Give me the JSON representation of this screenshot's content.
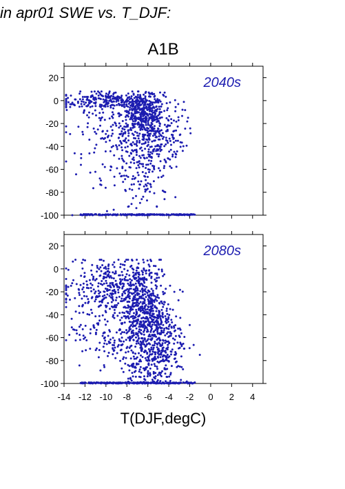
{
  "figure": {
    "title": "in apr01 SWE vs. T_DJF:",
    "scenario": "A1B",
    "xlabel": "T(DJF,degC)"
  },
  "colors": {
    "points": "#1c1cb0",
    "axis": "#000000"
  },
  "chart_data": [
    {
      "type": "scatter",
      "title": "2040s",
      "xlabel": "T(DJF,degC)",
      "ylabel": "",
      "xlim": [
        -14,
        5
      ],
      "ylim": [
        -100,
        30
      ],
      "xticks": [
        -14,
        -12,
        -10,
        -8,
        -6,
        -4,
        -2,
        0,
        2,
        4
      ],
      "yticks": [
        20,
        0,
        -20,
        -40,
        -60,
        -80,
        -100
      ],
      "grid": false,
      "clusters": [
        {
          "x_center": -9.5,
          "x_spread": 2.5,
          "y_center": 0,
          "y_spread": 4,
          "count": 260
        },
        {
          "x_center": -6.5,
          "x_spread": 1.0,
          "y_center": -12,
          "y_spread": 8,
          "count": 320
        },
        {
          "x_center": -5.5,
          "x_spread": 1.5,
          "y_center": -30,
          "y_spread": 15,
          "count": 260
        },
        {
          "x_center": -9,
          "x_spread": 2.5,
          "y_center": -30,
          "y_spread": 18,
          "count": 140
        },
        {
          "x_center": -6.5,
          "x_spread": 1.2,
          "y_center": -65,
          "y_spread": 18,
          "count": 110
        },
        {
          "x_center": -8.5,
          "x_spread": 2.2,
          "y_center": -70,
          "y_spread": 20,
          "count": 40
        }
      ],
      "floor_points": {
        "y": -100,
        "x_min": -12.5,
        "x_max": -1.5,
        "count": 200
      }
    },
    {
      "type": "scatter",
      "title": "2080s",
      "xlabel": "T(DJF,degC)",
      "ylabel": "",
      "xlim": [
        -14,
        5
      ],
      "ylim": [
        -100,
        30
      ],
      "xticks": [
        -14,
        -12,
        -10,
        -8,
        -6,
        -4,
        -2,
        0,
        2,
        4
      ],
      "yticks": [
        20,
        0,
        -20,
        -40,
        -60,
        -80,
        -100
      ],
      "grid": false,
      "clusters": [
        {
          "x_center": -9.5,
          "x_spread": 2.3,
          "y_center": -15,
          "y_spread": 12,
          "count": 330
        },
        {
          "x_center": -6.5,
          "x_spread": 1.1,
          "y_center": -35,
          "y_spread": 20,
          "count": 480
        },
        {
          "x_center": -5.0,
          "x_spread": 1.2,
          "y_center": -60,
          "y_spread": 15,
          "count": 260
        },
        {
          "x_center": -9.5,
          "x_spread": 2.0,
          "y_center": -55,
          "y_spread": 15,
          "count": 160
        },
        {
          "x_center": -6.0,
          "x_spread": 1.3,
          "y_center": -85,
          "y_spread": 10,
          "count": 150
        }
      ],
      "floor_points": {
        "y": -100,
        "x_min": -12.5,
        "x_max": -1.5,
        "count": 220
      }
    }
  ]
}
